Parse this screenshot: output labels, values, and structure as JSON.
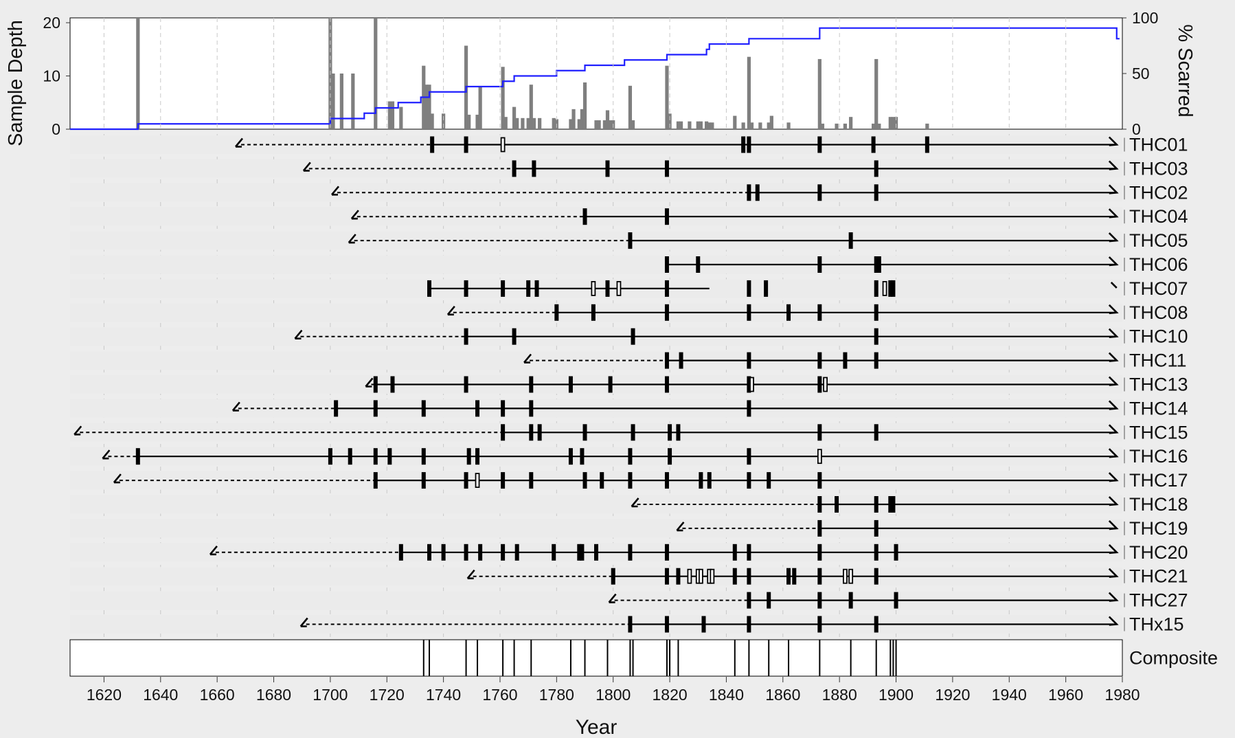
{
  "chart_data": {
    "type": "fire-history-chart",
    "xlabel": "Year",
    "xlim": [
      1608,
      1980
    ],
    "x_ticks": [
      1620,
      1640,
      1660,
      1680,
      1700,
      1720,
      1740,
      1760,
      1780,
      1800,
      1820,
      1840,
      1860,
      1880,
      1900,
      1920,
      1940,
      1960,
      1980
    ],
    "top_panel": {
      "left_axis_label": "Sample Depth",
      "right_axis_label": "% Scarred",
      "left_ticks": [
        0,
        10,
        20
      ],
      "right_ticks": [
        0,
        50,
        100
      ],
      "left_range": [
        0,
        20.91
      ],
      "right_range": [
        0,
        100
      ],
      "sample_depth_steps": [
        [
          1608,
          0
        ],
        [
          1632,
          1
        ],
        [
          1700,
          2
        ],
        [
          1712,
          3
        ],
        [
          1716,
          4
        ],
        [
          1724,
          5
        ],
        [
          1732,
          6
        ],
        [
          1735,
          7
        ],
        [
          1748,
          8
        ],
        [
          1761,
          9
        ],
        [
          1765,
          10
        ],
        [
          1780,
          11
        ],
        [
          1790,
          12
        ],
        [
          1804,
          13
        ],
        [
          1819,
          14
        ],
        [
          1833,
          15
        ],
        [
          1834,
          16
        ],
        [
          1848,
          17
        ],
        [
          1873,
          19
        ],
        [
          1978,
          17
        ]
      ],
      "percent_scarred": [
        [
          1632,
          100
        ],
        [
          1700,
          100
        ],
        [
          1701,
          50
        ],
        [
          1704,
          50
        ],
        [
          1708,
          50
        ],
        [
          1716,
          100
        ],
        [
          1721,
          25
        ],
        [
          1722,
          25
        ],
        [
          1725,
          20
        ],
        [
          1733,
          57
        ],
        [
          1734,
          40
        ],
        [
          1735,
          40
        ],
        [
          1736,
          14
        ],
        [
          1740,
          14
        ],
        [
          1748,
          75
        ],
        [
          1749,
          13
        ],
        [
          1752,
          13
        ],
        [
          1753,
          38
        ],
        [
          1761,
          56
        ],
        [
          1762,
          11
        ],
        [
          1765,
          20
        ],
        [
          1766,
          10
        ],
        [
          1768,
          10
        ],
        [
          1770,
          10
        ],
        [
          1771,
          40
        ],
        [
          1772,
          10
        ],
        [
          1774,
          10
        ],
        [
          1779,
          10
        ],
        [
          1780,
          9
        ],
        [
          1785,
          9
        ],
        [
          1786,
          18
        ],
        [
          1788,
          9
        ],
        [
          1789,
          18
        ],
        [
          1790,
          42
        ],
        [
          1794,
          8
        ],
        [
          1795,
          8
        ],
        [
          1797,
          8
        ],
        [
          1798,
          17
        ],
        [
          1799,
          8
        ],
        [
          1800,
          8
        ],
        [
          1806,
          39
        ],
        [
          1807,
          8
        ],
        [
          1819,
          57
        ],
        [
          1820,
          14
        ],
        [
          1823,
          7
        ],
        [
          1824,
          7
        ],
        [
          1827,
          7
        ],
        [
          1830,
          7
        ],
        [
          1831,
          7
        ],
        [
          1833,
          7
        ],
        [
          1834,
          6
        ],
        [
          1835,
          6
        ],
        [
          1843,
          12
        ],
        [
          1846,
          6
        ],
        [
          1848,
          65
        ],
        [
          1849,
          6
        ],
        [
          1852,
          6
        ],
        [
          1855,
          6
        ],
        [
          1856,
          12
        ],
        [
          1862,
          6
        ],
        [
          1873,
          63
        ],
        [
          1874,
          5
        ],
        [
          1879,
          5
        ],
        [
          1882,
          5
        ],
        [
          1884,
          11
        ],
        [
          1892,
          5
        ],
        [
          1893,
          63
        ],
        [
          1894,
          5
        ],
        [
          1898,
          11
        ],
        [
          1899,
          11
        ],
        [
          1900,
          11
        ],
        [
          1911,
          5
        ]
      ]
    },
    "series": [
      {
        "name": "THC01",
        "inner": 1667,
        "inner_type": "pith-estimate",
        "first": 1736,
        "last": 1978,
        "outer_type": "bark",
        "scars": [
          1736,
          1748,
          1846,
          1848,
          1873,
          1892,
          1911
        ],
        "injuries": [
          1761
        ]
      },
      {
        "name": "THC03",
        "inner": 1691,
        "inner_type": "pith-estimate",
        "first": 1765,
        "last": 1978,
        "outer_type": "bark",
        "scars": [
          1765,
          1772,
          1798,
          1819,
          1893
        ],
        "injuries": []
      },
      {
        "name": "THC02",
        "inner": 1701,
        "inner_type": "pith-estimate",
        "first": 1848,
        "last": 1978,
        "outer_type": "bark",
        "scars": [
          1848,
          1851,
          1873,
          1893
        ],
        "injuries": []
      },
      {
        "name": "THC04",
        "inner": 1708,
        "inner_type": "pith-estimate",
        "first": 1790,
        "last": 1978,
        "outer_type": "bark",
        "scars": [
          1790,
          1819
        ],
        "injuries": []
      },
      {
        "name": "THC05",
        "inner": 1707,
        "inner_type": "pith-estimate",
        "first": 1806,
        "last": 1978,
        "outer_type": "bark",
        "scars": [
          1806,
          1884
        ],
        "injuries": []
      },
      {
        "name": "THC06",
        "inner": null,
        "inner_type": "none",
        "first": 1819,
        "last": 1978,
        "outer_type": "bark",
        "scars": [
          1819,
          1830,
          1873,
          1893,
          1894
        ],
        "injuries": []
      },
      {
        "name": "THC07",
        "inner": null,
        "inner_type": "none",
        "first": 1735,
        "last": 1834,
        "outer_type": "none",
        "extra_segments": [
          [
            1978,
            1978
          ]
        ],
        "scars": [
          1735,
          1748,
          1761,
          1770,
          1773,
          1798,
          1819,
          1848,
          1854,
          1893,
          1898,
          1899
        ],
        "injuries": [
          1793,
          1802,
          1896
        ]
      },
      {
        "name": "THC08",
        "inner": 1742,
        "inner_type": "pith-estimate",
        "first": 1780,
        "last": 1978,
        "outer_type": "bark",
        "scars": [
          1780,
          1793,
          1819,
          1848,
          1862,
          1873,
          1893
        ],
        "injuries": []
      },
      {
        "name": "THC10",
        "inner": 1688,
        "inner_type": "pith-estimate",
        "first": 1748,
        "last": 1978,
        "outer_type": "bark",
        "scars": [
          1748,
          1765,
          1807,
          1893
        ],
        "injuries": []
      },
      {
        "name": "THC11",
        "inner": 1769,
        "inner_type": "pith-estimate",
        "first": 1819,
        "last": 1978,
        "outer_type": "bark",
        "scars": [
          1819,
          1824,
          1848,
          1873,
          1882,
          1893
        ],
        "injuries": []
      },
      {
        "name": "THC13",
        "inner": 1713,
        "inner_type": "pith-estimate",
        "first": 1716,
        "last": 1978,
        "outer_type": "bark",
        "scars": [
          1716,
          1722,
          1748,
          1771,
          1785,
          1799,
          1819,
          1848,
          1873
        ],
        "injuries": [
          1849,
          1875
        ]
      },
      {
        "name": "THC14",
        "inner": 1666,
        "inner_type": "pith-estimate",
        "first": 1702,
        "last": 1978,
        "outer_type": "bark",
        "scars": [
          1702,
          1716,
          1733,
          1752,
          1761,
          1771,
          1848
        ],
        "injuries": []
      },
      {
        "name": "THC15",
        "inner": 1610,
        "inner_type": "pith-estimate",
        "first": 1761,
        "last": 1978,
        "outer_type": "bark",
        "scars": [
          1761,
          1771,
          1774,
          1790,
          1807,
          1820,
          1823,
          1873,
          1893
        ],
        "injuries": []
      },
      {
        "name": "THC16",
        "inner": 1620,
        "inner_type": "pith-estimate",
        "first": 1632,
        "last": 1978,
        "outer_type": "bark",
        "scars": [
          1632,
          1700,
          1707,
          1716,
          1721,
          1733,
          1749,
          1752,
          1785,
          1789,
          1806,
          1820,
          1848
        ],
        "injuries": [
          1873
        ]
      },
      {
        "name": "THC17",
        "inner": 1624,
        "inner_type": "pith-estimate",
        "first": 1716,
        "last": 1978,
        "outer_type": "bark",
        "scars": [
          1716,
          1733,
          1748,
          1761,
          1771,
          1790,
          1796,
          1806,
          1819,
          1831,
          1834,
          1848,
          1855,
          1873
        ],
        "injuries": [
          1752
        ]
      },
      {
        "name": "THC18",
        "inner": 1807,
        "inner_type": "pith-estimate",
        "first": 1873,
        "last": 1978,
        "outer_type": "bark",
        "scars": [
          1873,
          1879,
          1893,
          1898,
          1899
        ],
        "injuries": []
      },
      {
        "name": "THC19",
        "inner": 1823,
        "inner_type": "pith-estimate",
        "first": 1873,
        "last": 1978,
        "outer_type": "bark",
        "scars": [
          1873,
          1893
        ],
        "injuries": []
      },
      {
        "name": "THC20",
        "inner": 1658,
        "inner_type": "pith-estimate",
        "first": 1725,
        "last": 1978,
        "outer_type": "bark",
        "scars": [
          1725,
          1735,
          1740,
          1748,
          1753,
          1761,
          1766,
          1779,
          1788,
          1789,
          1794,
          1806,
          1819,
          1843,
          1848,
          1873,
          1893,
          1900
        ],
        "injuries": []
      },
      {
        "name": "THC21",
        "inner": 1749,
        "inner_type": "pith-estimate",
        "first": 1800,
        "last": 1978,
        "outer_type": "bark",
        "scars": [
          1800,
          1819,
          1823,
          1843,
          1848,
          1862,
          1864,
          1873,
          1893
        ],
        "injuries": [
          1827,
          1830,
          1831,
          1834,
          1835,
          1882,
          1884
        ]
      },
      {
        "name": "THC27",
        "inner": 1799,
        "inner_type": "pith-estimate",
        "first": 1848,
        "last": 1978,
        "outer_type": "bark",
        "scars": [
          1848,
          1855,
          1873,
          1884,
          1900
        ],
        "injuries": []
      },
      {
        "name": "THx15",
        "inner": 1690,
        "inner_type": "pith-estimate",
        "first": 1806,
        "last": 1978,
        "outer_type": "bark",
        "scars": [
          1806,
          1819,
          1832,
          1848,
          1873,
          1893
        ],
        "injuries": []
      }
    ],
    "composite": {
      "name": "Composite",
      "years": [
        1733,
        1735,
        1748,
        1752,
        1761,
        1765,
        1771,
        1785,
        1790,
        1798,
        1806,
        1807,
        1819,
        1820,
        1823,
        1843,
        1848,
        1855,
        1862,
        1873,
        1884,
        1893,
        1898,
        1899,
        1900
      ]
    },
    "colors": {
      "background": "#ededed",
      "panel": "#ffffff",
      "sample_depth_line": "#1f1fff",
      "sample_depth_axis_text": "#0000ff",
      "bars": "#7f7f7f",
      "row_band": "#ebebeb",
      "grid": "#c8c8c8",
      "marks": "#000000"
    }
  }
}
